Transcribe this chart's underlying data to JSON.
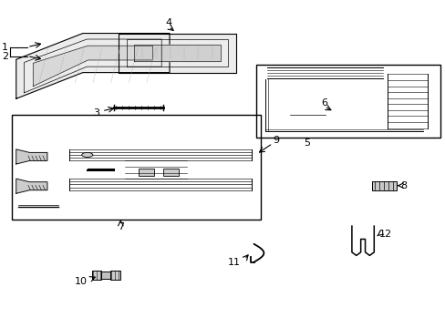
{
  "bg_color": "#ffffff",
  "line_color": "#000000",
  "figure_size": [
    4.89,
    3.6
  ],
  "dpi": 100,
  "label_fs": 8.0
}
